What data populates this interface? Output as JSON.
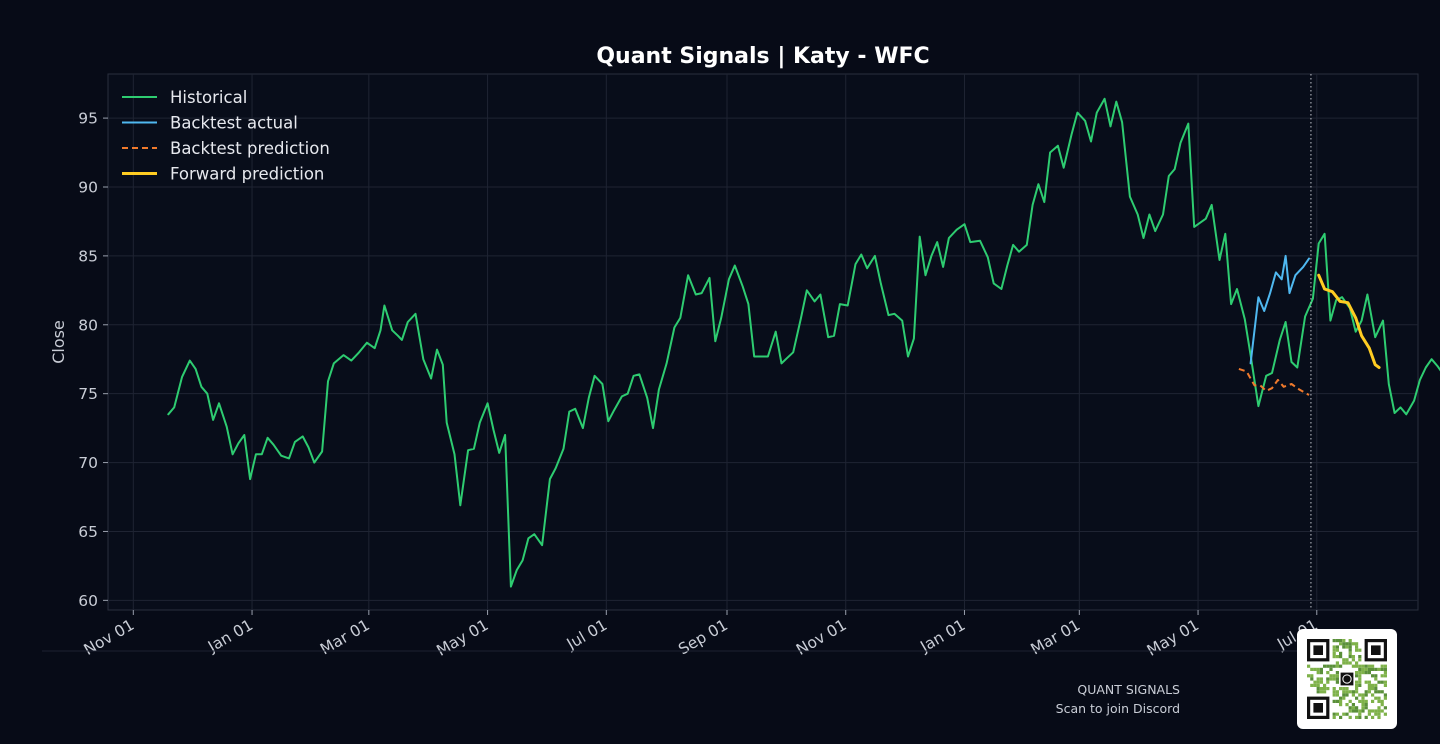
{
  "chart_data": {
    "type": "line",
    "title": "Quant Signals | Katy - WFC",
    "xlabel": "",
    "ylabel": "Close",
    "ylim": [
      59.3,
      98.2
    ],
    "yticks": [
      60,
      65,
      70,
      75,
      80,
      85,
      90,
      95
    ],
    "xticks": [
      {
        "date": "2023-11-01",
        "label": "Nov 01"
      },
      {
        "date": "2024-01-01",
        "label": "Jan 01"
      },
      {
        "date": "2024-03-01",
        "label": "Mar 01"
      },
      {
        "date": "2024-05-01",
        "label": "May 01"
      },
      {
        "date": "2024-07-01",
        "label": "Jul 01"
      },
      {
        "date": "2024-09-01",
        "label": "Sep 01"
      },
      {
        "date": "2024-11-01",
        "label": "Nov 01"
      },
      {
        "date": "2025-01-01",
        "label": "Jan 01"
      },
      {
        "date": "2025-03-01",
        "label": "Mar 01"
      },
      {
        "date": "2025-05-01",
        "label": "May 01"
      },
      {
        "date": "2025-07-01",
        "label": "Jul 01"
      }
    ],
    "xlim": [
      "2023-10-19",
      "2025-08-22"
    ],
    "grid": true,
    "legend_position": "top-left",
    "forecast_start": "2025-06-28",
    "series": [
      {
        "name": "Historical",
        "color": "#2ecc71",
        "style": "solid",
        "points": [
          [
            "2023-11-19",
            73.5
          ],
          [
            "2023-11-22",
            74.0
          ],
          [
            "2023-11-26",
            76.2
          ],
          [
            "2023-11-30",
            77.4
          ],
          [
            "2023-12-03",
            76.8
          ],
          [
            "2023-12-06",
            75.5
          ],
          [
            "2023-12-09",
            75.0
          ],
          [
            "2023-12-12",
            73.1
          ],
          [
            "2023-12-15",
            74.3
          ],
          [
            "2023-12-19",
            72.6
          ],
          [
            "2023-12-22",
            70.6
          ],
          [
            "2023-12-25",
            71.4
          ],
          [
            "2023-12-28",
            72.0
          ],
          [
            "2023-12-31",
            68.8
          ],
          [
            "2024-01-03",
            70.6
          ],
          [
            "2024-01-06",
            70.6
          ],
          [
            "2024-01-09",
            71.8
          ],
          [
            "2024-01-12",
            71.3
          ],
          [
            "2024-01-16",
            70.5
          ],
          [
            "2024-01-20",
            70.3
          ],
          [
            "2024-01-23",
            71.5
          ],
          [
            "2024-01-27",
            71.9
          ],
          [
            "2024-01-30",
            71.1
          ],
          [
            "2024-02-02",
            70.0
          ],
          [
            "2024-02-06",
            70.8
          ],
          [
            "2024-02-09",
            75.9
          ],
          [
            "2024-02-12",
            77.2
          ],
          [
            "2024-02-17",
            77.8
          ],
          [
            "2024-02-21",
            77.4
          ],
          [
            "2024-02-25",
            78.0
          ],
          [
            "2024-02-29",
            78.7
          ],
          [
            "2024-03-04",
            78.3
          ],
          [
            "2024-03-07",
            79.6
          ],
          [
            "2024-03-09",
            81.4
          ],
          [
            "2024-03-13",
            79.6
          ],
          [
            "2024-03-16",
            79.2
          ],
          [
            "2024-03-18",
            78.9
          ],
          [
            "2024-03-21",
            80.2
          ],
          [
            "2024-03-25",
            80.8
          ],
          [
            "2024-03-29",
            77.5
          ],
          [
            "2024-04-02",
            76.1
          ],
          [
            "2024-04-05",
            78.2
          ],
          [
            "2024-04-08",
            77.1
          ],
          [
            "2024-04-10",
            72.9
          ],
          [
            "2024-04-14",
            70.6
          ],
          [
            "2024-04-17",
            66.9
          ],
          [
            "2024-04-21",
            70.9
          ],
          [
            "2024-04-24",
            71.0
          ],
          [
            "2024-04-27",
            72.9
          ],
          [
            "2024-05-01",
            74.3
          ],
          [
            "2024-05-04",
            72.4
          ],
          [
            "2024-05-07",
            70.7
          ],
          [
            "2024-05-10",
            72.0
          ],
          [
            "2024-05-13",
            61.0
          ],
          [
            "2024-05-16",
            62.2
          ],
          [
            "2024-05-19",
            62.9
          ],
          [
            "2024-05-22",
            64.5
          ],
          [
            "2024-05-25",
            64.8
          ],
          [
            "2024-05-29",
            64.0
          ],
          [
            "2024-06-02",
            68.8
          ],
          [
            "2024-06-05",
            69.6
          ],
          [
            "2024-06-09",
            71.0
          ],
          [
            "2024-06-12",
            73.7
          ],
          [
            "2024-06-15",
            73.9
          ],
          [
            "2024-06-19",
            72.5
          ],
          [
            "2024-06-22",
            74.7
          ],
          [
            "2024-06-25",
            76.3
          ],
          [
            "2024-06-29",
            75.7
          ],
          [
            "2024-07-02",
            73.0
          ],
          [
            "2024-07-05",
            73.8
          ],
          [
            "2024-07-09",
            74.8
          ],
          [
            "2024-07-12",
            75.0
          ],
          [
            "2024-07-15",
            76.3
          ],
          [
            "2024-07-18",
            76.4
          ],
          [
            "2024-07-22",
            74.7
          ],
          [
            "2024-07-25",
            72.5
          ],
          [
            "2024-07-28",
            75.3
          ],
          [
            "2024-08-01",
            77.2
          ],
          [
            "2024-08-05",
            79.8
          ],
          [
            "2024-08-08",
            80.5
          ],
          [
            "2024-08-12",
            83.6
          ],
          [
            "2024-08-16",
            82.2
          ],
          [
            "2024-08-19",
            82.3
          ],
          [
            "2024-08-23",
            83.4
          ],
          [
            "2024-08-26",
            78.8
          ],
          [
            "2024-08-29",
            80.5
          ],
          [
            "2024-09-02",
            83.3
          ],
          [
            "2024-09-05",
            84.3
          ],
          [
            "2024-09-09",
            82.8
          ],
          [
            "2024-09-12",
            81.5
          ],
          [
            "2024-09-15",
            77.7
          ],
          [
            "2024-09-19",
            77.7
          ],
          [
            "2024-09-22",
            77.7
          ],
          [
            "2024-09-26",
            79.5
          ],
          [
            "2024-09-29",
            77.2
          ],
          [
            "2024-10-02",
            77.6
          ],
          [
            "2024-10-05",
            78.0
          ],
          [
            "2024-10-09",
            80.5
          ],
          [
            "2024-10-12",
            82.5
          ],
          [
            "2024-10-16",
            81.7
          ],
          [
            "2024-10-19",
            82.2
          ],
          [
            "2024-10-23",
            79.1
          ],
          [
            "2024-10-26",
            79.2
          ],
          [
            "2024-10-29",
            81.5
          ],
          [
            "2024-11-02",
            81.4
          ],
          [
            "2024-11-06",
            84.4
          ],
          [
            "2024-11-09",
            85.1
          ],
          [
            "2024-11-12",
            84.1
          ],
          [
            "2024-11-16",
            85.0
          ],
          [
            "2024-11-19",
            83.0
          ],
          [
            "2024-11-23",
            80.7
          ],
          [
            "2024-11-26",
            80.8
          ],
          [
            "2024-11-30",
            80.3
          ],
          [
            "2024-12-03",
            77.7
          ],
          [
            "2024-12-06",
            79.0
          ],
          [
            "2024-12-09",
            86.4
          ],
          [
            "2024-12-12",
            83.6
          ],
          [
            "2024-12-15",
            85.0
          ],
          [
            "2024-12-18",
            86.0
          ],
          [
            "2024-12-21",
            84.2
          ],
          [
            "2024-12-24",
            86.3
          ],
          [
            "2024-12-28",
            86.9
          ],
          [
            "2025-01-01",
            87.3
          ],
          [
            "2025-01-04",
            86.0
          ],
          [
            "2025-01-09",
            86.1
          ],
          [
            "2025-01-13",
            84.9
          ],
          [
            "2025-01-16",
            83.0
          ],
          [
            "2025-01-20",
            82.6
          ],
          [
            "2025-01-23",
            84.3
          ],
          [
            "2025-01-26",
            85.8
          ],
          [
            "2025-01-29",
            85.3
          ],
          [
            "2025-02-02",
            85.8
          ],
          [
            "2025-02-05",
            88.7
          ],
          [
            "2025-02-08",
            90.2
          ],
          [
            "2025-02-11",
            88.9
          ],
          [
            "2025-02-14",
            92.5
          ],
          [
            "2025-02-18",
            93.0
          ],
          [
            "2025-02-21",
            91.4
          ],
          [
            "2025-02-25",
            93.8
          ],
          [
            "2025-02-28",
            95.4
          ],
          [
            "2025-03-04",
            94.8
          ],
          [
            "2025-03-07",
            93.3
          ],
          [
            "2025-03-10",
            95.4
          ],
          [
            "2025-03-14",
            96.4
          ],
          [
            "2025-03-17",
            94.4
          ],
          [
            "2025-03-20",
            96.2
          ],
          [
            "2025-03-23",
            94.7
          ],
          [
            "2025-03-27",
            89.3
          ],
          [
            "2025-03-31",
            88.0
          ],
          [
            "2025-04-03",
            86.3
          ],
          [
            "2025-04-06",
            88.0
          ],
          [
            "2025-04-09",
            86.8
          ],
          [
            "2025-04-13",
            88.0
          ],
          [
            "2025-04-16",
            90.8
          ],
          [
            "2025-04-19",
            91.3
          ],
          [
            "2025-04-22",
            93.2
          ],
          [
            "2025-04-26",
            94.6
          ],
          [
            "2025-04-29",
            87.1
          ],
          [
            "2025-05-02",
            87.4
          ],
          [
            "2025-05-05",
            87.7
          ],
          [
            "2025-05-08",
            88.7
          ],
          [
            "2025-05-12",
            84.7
          ],
          [
            "2025-05-15",
            86.6
          ],
          [
            "2025-05-18",
            81.5
          ],
          [
            "2025-05-21",
            82.6
          ],
          [
            "2025-05-25",
            80.4
          ],
          [
            "2025-05-28",
            77.8
          ],
          [
            "2025-06-01",
            74.1
          ],
          [
            "2025-06-05",
            76.3
          ],
          [
            "2025-06-08",
            76.5
          ],
          [
            "2025-06-12",
            78.9
          ],
          [
            "2025-06-15",
            80.2
          ],
          [
            "2025-06-18",
            77.3
          ],
          [
            "2025-06-21",
            76.9
          ],
          [
            "2025-06-25",
            80.6
          ],
          [
            "2025-06-29",
            81.9
          ],
          [
            "2025-07-02",
            85.9
          ],
          [
            "2025-07-05",
            86.6
          ],
          [
            "2025-07-08",
            80.3
          ],
          [
            "2025-07-11",
            81.8
          ],
          [
            "2025-07-14",
            82.0
          ],
          [
            "2025-07-18",
            81.2
          ],
          [
            "2025-07-21",
            79.5
          ],
          [
            "2025-07-24",
            80.3
          ],
          [
            "2025-07-27",
            82.2
          ],
          [
            "2025-07-31",
            79.1
          ],
          [
            "2025-08-04",
            80.3
          ],
          [
            "2025-08-07",
            75.7
          ],
          [
            "2025-08-10",
            73.6
          ],
          [
            "2025-08-13",
            74.0
          ],
          [
            "2025-08-16",
            73.5
          ],
          [
            "2025-08-20",
            74.5
          ],
          [
            "2025-08-23",
            76.0
          ],
          [
            "2025-08-26",
            76.9
          ],
          [
            "2025-08-29",
            77.5
          ],
          [
            "2025-09-01",
            77.0
          ],
          [
            "2025-09-03",
            76.6
          ]
        ]
      },
      {
        "name": "Backtest actual",
        "color": "#4fb8f0",
        "style": "solid",
        "points": [
          [
            "2025-05-28",
            77.2
          ],
          [
            "2025-06-01",
            82.0
          ],
          [
            "2025-06-04",
            81.0
          ],
          [
            "2025-06-07",
            82.3
          ],
          [
            "2025-06-10",
            83.8
          ],
          [
            "2025-06-13",
            83.3
          ],
          [
            "2025-06-15",
            85.0
          ],
          [
            "2025-06-17",
            82.3
          ],
          [
            "2025-06-20",
            83.6
          ],
          [
            "2025-06-24",
            84.2
          ],
          [
            "2025-06-27",
            84.8
          ]
        ]
      },
      {
        "name": "Backtest prediction",
        "color": "#f07a2c",
        "style": "dashed",
        "points": [
          [
            "2025-05-22",
            76.8
          ],
          [
            "2025-05-26",
            76.6
          ],
          [
            "2025-05-30",
            75.6
          ],
          [
            "2025-06-02",
            75.6
          ],
          [
            "2025-06-05",
            75.2
          ],
          [
            "2025-06-08",
            75.4
          ],
          [
            "2025-06-11",
            76.0
          ],
          [
            "2025-06-14",
            75.5
          ],
          [
            "2025-06-18",
            75.7
          ],
          [
            "2025-06-22",
            75.3
          ],
          [
            "2025-06-27",
            74.9
          ]
        ]
      },
      {
        "name": "Forward prediction",
        "color": "#ffcc22",
        "style": "solid",
        "points": [
          [
            "2025-07-02",
            83.6
          ],
          [
            "2025-07-05",
            82.6
          ],
          [
            "2025-07-09",
            82.4
          ],
          [
            "2025-07-13",
            81.7
          ],
          [
            "2025-07-17",
            81.6
          ],
          [
            "2025-07-21",
            80.5
          ],
          [
            "2025-07-24",
            79.2
          ],
          [
            "2025-07-28",
            78.3
          ],
          [
            "2025-07-31",
            77.1
          ],
          [
            "2025-08-02",
            76.9
          ]
        ]
      }
    ]
  },
  "footer": {
    "brand": "QUANT SIGNALS",
    "cta": "Scan to join Discord"
  }
}
